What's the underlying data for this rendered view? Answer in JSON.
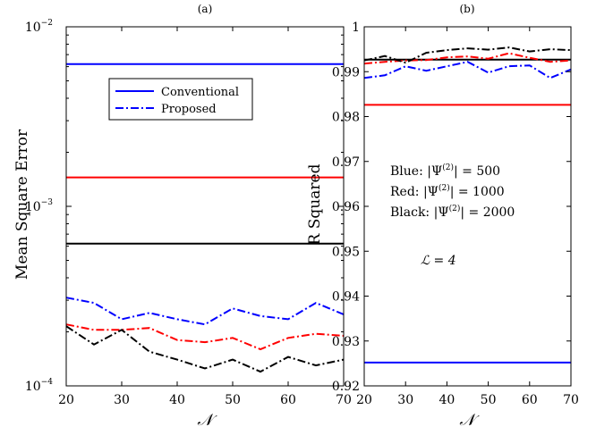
{
  "chart_data": [
    {
      "panel": "(a)",
      "type": "line",
      "title": "(a)",
      "xlabel": "𝒩",
      "ylabel": "Mean Square Error",
      "yscale": "log",
      "xlim": [
        20,
        70
      ],
      "ylim": [
        0.0001,
        0.01
      ],
      "xticks": [
        "20",
        "30",
        "40",
        "50",
        "60",
        "70"
      ],
      "legend": {
        "placement": "top-center",
        "entries": [
          "Conventional",
          "Proposed"
        ]
      },
      "x": [
        20,
        25,
        30,
        35,
        40,
        45,
        50,
        55,
        60,
        65,
        70
      ],
      "series": [
        {
          "color": "#0000ff",
          "style": "solid",
          "values": [
            0.0062,
            0.0062,
            0.0062,
            0.0062,
            0.0062,
            0.0062,
            0.0062,
            0.0062,
            0.0062,
            0.0062,
            0.0062
          ]
        },
        {
          "color": "#ff0000",
          "style": "solid",
          "values": [
            0.00145,
            0.00145,
            0.00145,
            0.00145,
            0.00145,
            0.00145,
            0.00145,
            0.00145,
            0.00145,
            0.00145,
            0.00145
          ]
        },
        {
          "color": "#000000",
          "style": "solid",
          "values": [
            0.00062,
            0.00062,
            0.00062,
            0.00062,
            0.00062,
            0.00062,
            0.00062,
            0.00062,
            0.00062,
            0.00062,
            0.00062
          ]
        },
        {
          "color": "#0000ff",
          "style": "dashdot",
          "values": [
            0.00031,
            0.00029,
            0.000235,
            0.000255,
            0.000235,
            0.00022,
            0.00027,
            0.000245,
            0.000235,
            0.00029,
            0.00025
          ]
        },
        {
          "color": "#ff0000",
          "style": "dashdot",
          "values": [
            0.00022,
            0.000205,
            0.000205,
            0.00021,
            0.00018,
            0.000175,
            0.000185,
            0.00016,
            0.000185,
            0.000195,
            0.00019
          ]
        },
        {
          "color": "#000000",
          "style": "dashdot",
          "values": [
            0.000215,
            0.00017,
            0.000205,
            0.000155,
            0.00014,
            0.000125,
            0.00014,
            0.00012,
            0.000145,
            0.00013,
            0.00014
          ]
        }
      ]
    },
    {
      "panel": "(b)",
      "type": "line",
      "title": "(b)",
      "xlabel": "𝒩",
      "ylabel": "R Squared",
      "xlim": [
        20,
        70
      ],
      "ylim": [
        0.92,
        1
      ],
      "xticks": [
        "20",
        "30",
        "40",
        "50",
        "60",
        "70"
      ],
      "yticks": [
        "0.92",
        "0.93",
        "0.94",
        "0.95",
        "0.96",
        "0.97",
        "0.98",
        "0.99",
        "1"
      ],
      "annotations": [
        {
          "prefix": "Blue: |Ψ",
          "sup": "(2)",
          "suffix": "| = 500"
        },
        {
          "prefix": "Red: |Ψ",
          "sup": "(2)",
          "suffix": "| = 1000"
        },
        {
          "prefix": "Black: |Ψ",
          "sup": "(2)",
          "suffix": "| = 2000"
        }
      ],
      "param_label": "ℒ = 4",
      "x": [
        20,
        25,
        30,
        35,
        40,
        45,
        50,
        55,
        60,
        65,
        70
      ],
      "series": [
        {
          "color": "#0000ff",
          "style": "solid",
          "values": [
            0.9252,
            0.9252,
            0.9252,
            0.9252,
            0.9252,
            0.9252,
            0.9252,
            0.9252,
            0.9252,
            0.9252,
            0.9252
          ]
        },
        {
          "color": "#ff0000",
          "style": "solid",
          "values": [
            0.9826,
            0.9826,
            0.9826,
            0.9826,
            0.9826,
            0.9826,
            0.9826,
            0.9826,
            0.9826,
            0.9826,
            0.9826
          ]
        },
        {
          "color": "#000000",
          "style": "solid",
          "values": [
            0.9927,
            0.9927,
            0.9927,
            0.9927,
            0.9927,
            0.9927,
            0.9927,
            0.9927,
            0.9927,
            0.9927,
            0.9927
          ]
        },
        {
          "color": "#0000ff",
          "style": "dashdot",
          "values": [
            0.9886,
            0.9892,
            0.9912,
            0.9902,
            0.9912,
            0.9922,
            0.9898,
            0.9912,
            0.9914,
            0.9886,
            0.9905
          ]
        },
        {
          "color": "#ff0000",
          "style": "dashdot",
          "values": [
            0.9918,
            0.9922,
            0.9925,
            0.9926,
            0.9932,
            0.9934,
            0.9929,
            0.9941,
            0.9931,
            0.9922,
            0.9925
          ]
        },
        {
          "color": "#000000",
          "style": "dashdot",
          "values": [
            0.9925,
            0.9935,
            0.992,
            0.9942,
            0.9948,
            0.9952,
            0.9949,
            0.9954,
            0.9945,
            0.995,
            0.9948
          ]
        }
      ]
    }
  ]
}
